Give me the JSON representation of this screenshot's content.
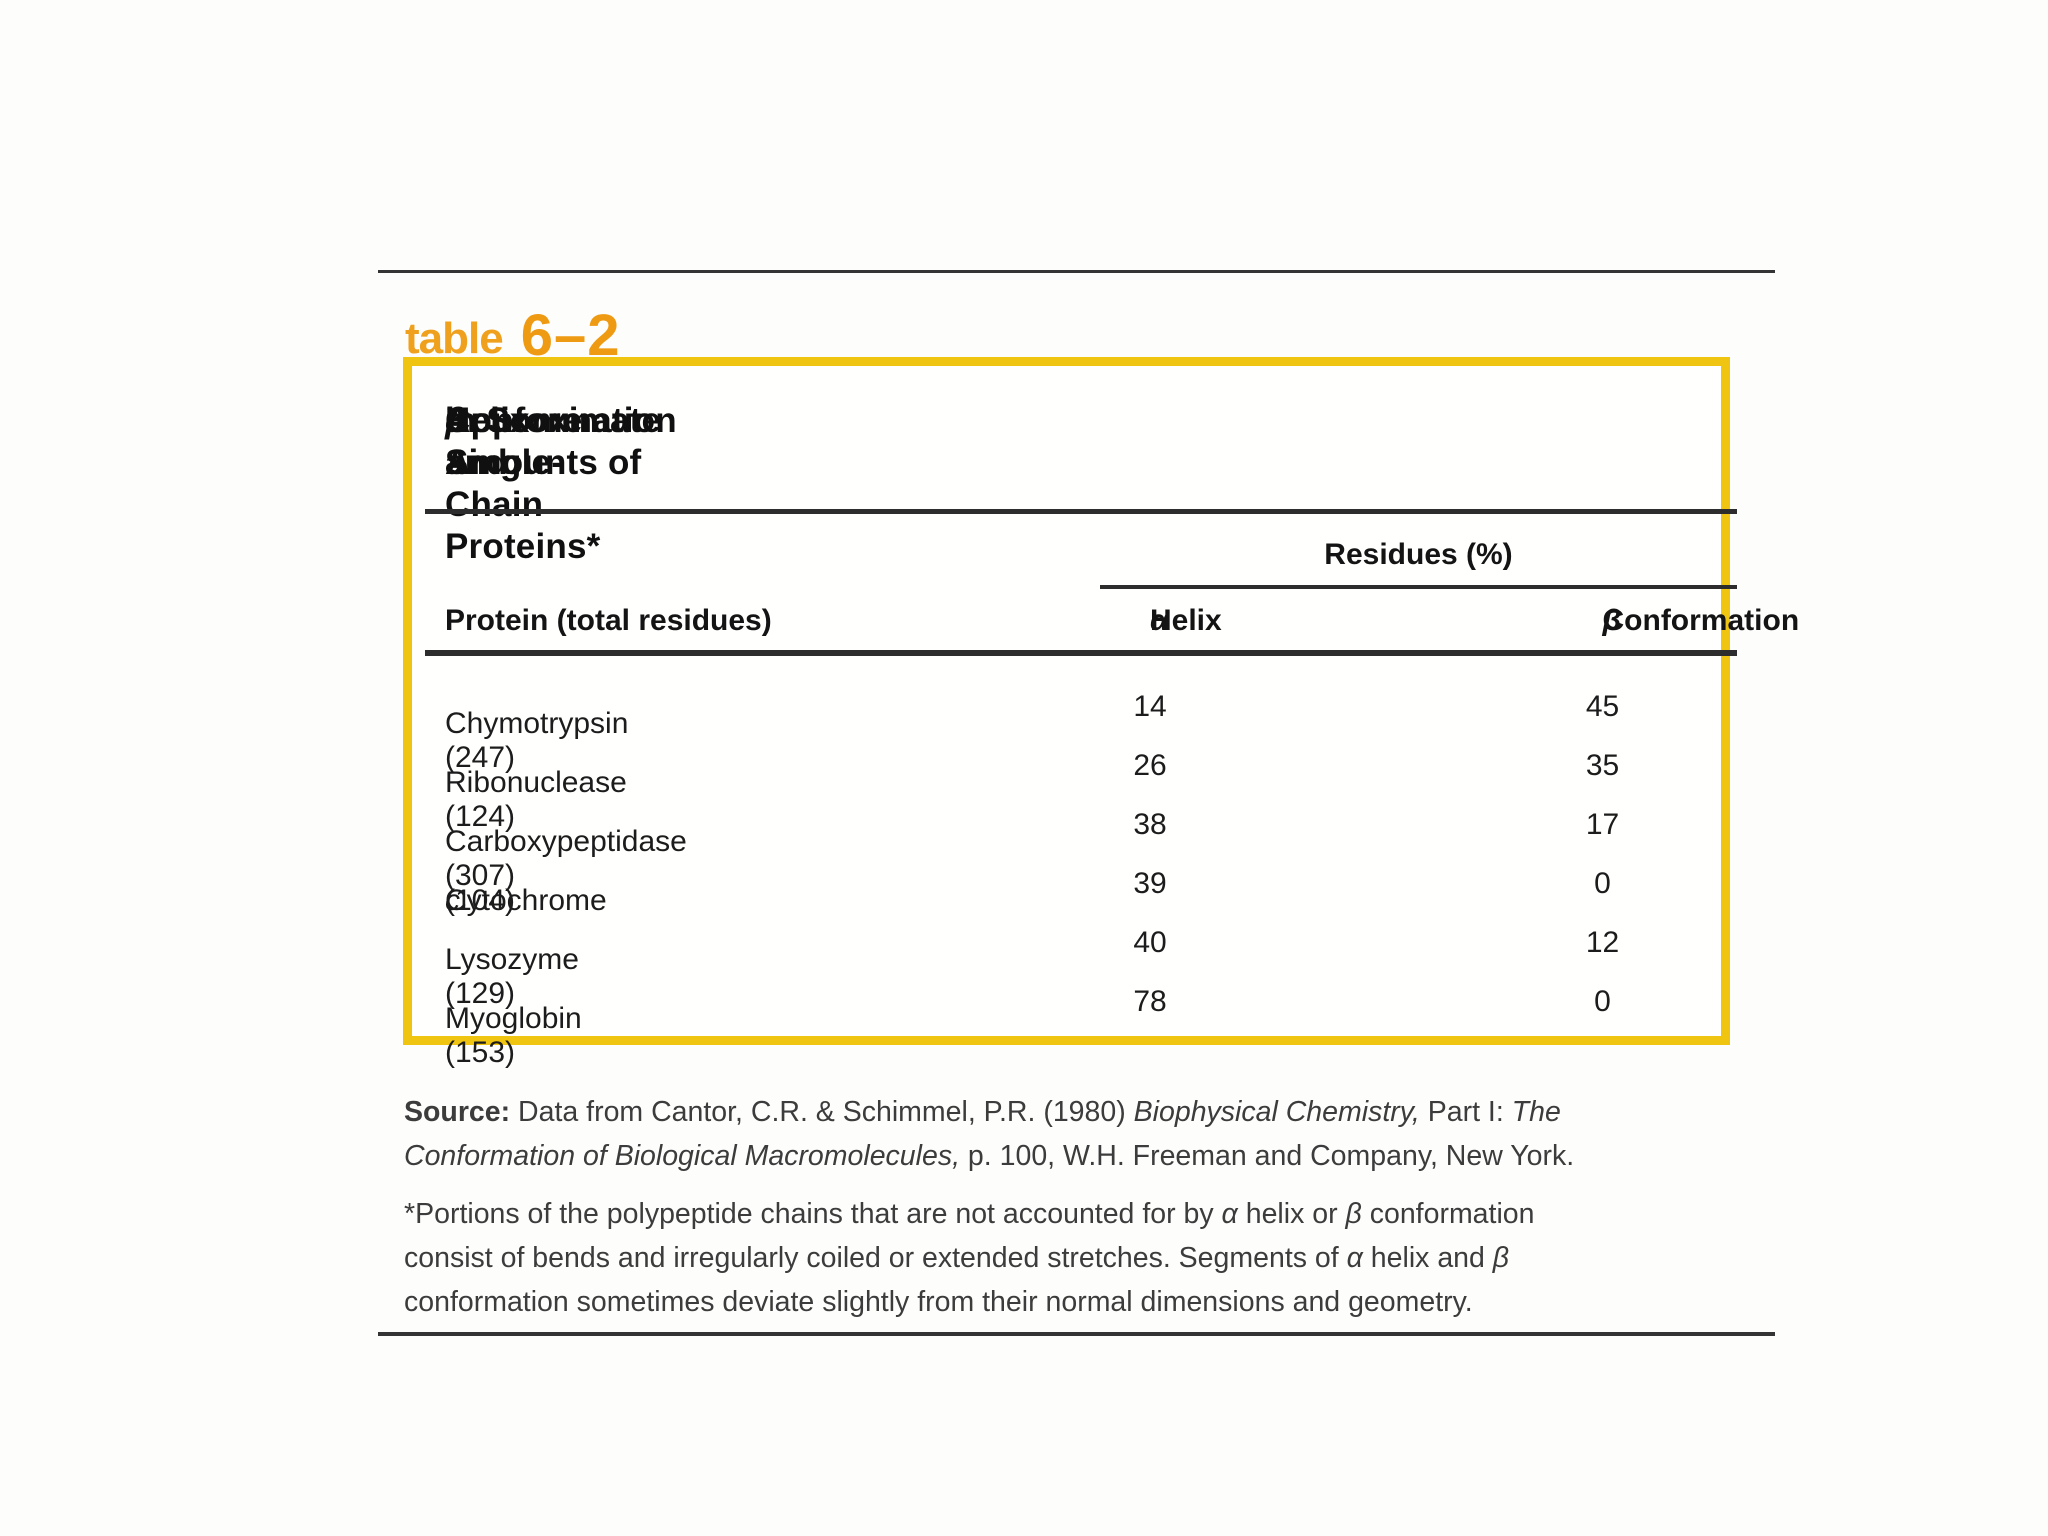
{
  "colors": {
    "accent_orange": "#EE9A13",
    "frame_yellow": "#F0C512",
    "rule_dark": "#2D2D2D"
  },
  "table_label": {
    "word": "table",
    "number": "6–2"
  },
  "table": {
    "title_line1_parts": [
      {
        "t": "Approximate Amounts of "
      },
      {
        "t": "α",
        "i": true
      },
      {
        "t": " Helix and "
      },
      {
        "t": "β",
        "i": true
      },
      {
        "t": " Conformation"
      }
    ],
    "title_line2": "in Some Single-Chain Proteins*",
    "residues_group_header": "Residues (%)",
    "columns": {
      "protein": "Protein (total residues)",
      "alpha_parts": [
        {
          "t": "α",
          "i": true
        },
        {
          "t": " Helix"
        }
      ],
      "beta_parts": [
        {
          "t": "β",
          "i": true
        },
        {
          "t": " Conformation"
        }
      ]
    },
    "rows": [
      {
        "protein_parts": [
          {
            "t": "Chymotrypsin (247)"
          }
        ],
        "alpha": "14",
        "beta": "45"
      },
      {
        "protein_parts": [
          {
            "t": "Ribonuclease (124)"
          }
        ],
        "alpha": "26",
        "beta": "35"
      },
      {
        "protein_parts": [
          {
            "t": "Carboxypeptidase (307)"
          }
        ],
        "alpha": "38",
        "beta": "17"
      },
      {
        "protein_parts": [
          {
            "t": "Cytochrome "
          },
          {
            "t": "c",
            "i": true
          },
          {
            "t": " (104)"
          }
        ],
        "alpha": "39",
        "beta": "0"
      },
      {
        "protein_parts": [
          {
            "t": "Lysozyme (129)"
          }
        ],
        "alpha": "40",
        "beta": "12"
      },
      {
        "protein_parts": [
          {
            "t": "Myoglobin (153)"
          }
        ],
        "alpha": "78",
        "beta": "0"
      }
    ]
  },
  "source": {
    "line1_parts": [
      {
        "t": "Source:",
        "b": true
      },
      {
        "t": " Data from Cantor, C.R. & Schimmel, P.R. (1980) "
      },
      {
        "t": "Biophysical Chemistry,",
        "i": true
      },
      {
        "t": " Part I: "
      },
      {
        "t": "The",
        "i": true
      }
    ],
    "line2_parts": [
      {
        "t": "Conformation of Biological Macromolecules,",
        "i": true
      },
      {
        "t": " p. 100, W.H. Freeman and Company, New York."
      }
    ]
  },
  "footnote": {
    "line1_parts": [
      {
        "t": "*Portions of the polypeptide chains that are not accounted for by "
      },
      {
        "t": "α",
        "i": true
      },
      {
        "t": " helix or "
      },
      {
        "t": "β",
        "i": true
      },
      {
        "t": " conformation"
      }
    ],
    "line2_parts": [
      {
        "t": "consist of bends and irregularly coiled or extended stretches. Segments of "
      },
      {
        "t": "α",
        "i": true
      },
      {
        "t": " helix and "
      },
      {
        "t": "β",
        "i": true
      }
    ],
    "line3_parts": [
      {
        "t": "conformation sometimes deviate slightly from their normal dimensions and geometry."
      }
    ]
  }
}
